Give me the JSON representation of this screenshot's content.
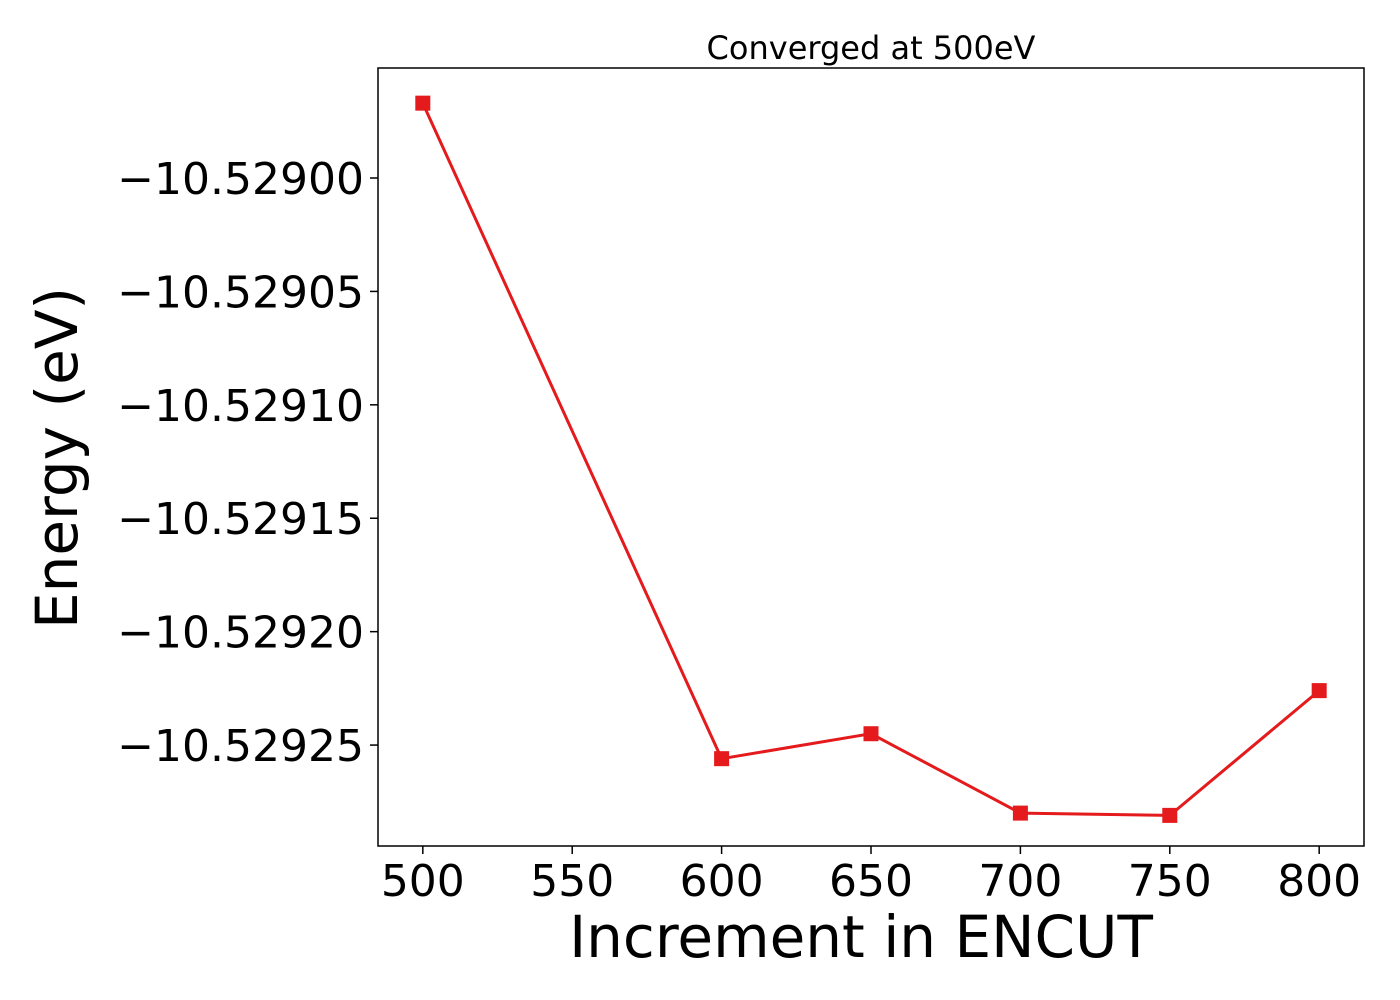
{
  "chart_data": {
    "type": "line",
    "title": "Converged at 500eV",
    "xlabel": "Increment in ENCUT",
    "ylabel": "Energy (eV)",
    "x": [
      500,
      600,
      650,
      700,
      750,
      800
    ],
    "series": [
      {
        "values": [
          -10.528967,
          -10.529256,
          -10.529245,
          -10.52928,
          -10.529281,
          -10.529226
        ],
        "color": "#e41a1c",
        "marker": "square"
      }
    ],
    "xlim": [
      485,
      815
    ],
    "ylim": [
      -10.5292945,
      -10.5289515
    ],
    "xticks": [
      500,
      550,
      600,
      650,
      700,
      750,
      800
    ],
    "xtick_labels": [
      "500",
      "550",
      "600",
      "650",
      "700",
      "750",
      "800"
    ],
    "yticks": [
      -10.529,
      -10.52905,
      -10.5291,
      -10.52915,
      -10.5292,
      -10.52925
    ],
    "ytick_labels": [
      "−10.52900",
      "−10.52905",
      "−10.52910",
      "−10.52915",
      "−10.52920",
      "−10.52925"
    ],
    "grid": false,
    "legend": "none"
  }
}
